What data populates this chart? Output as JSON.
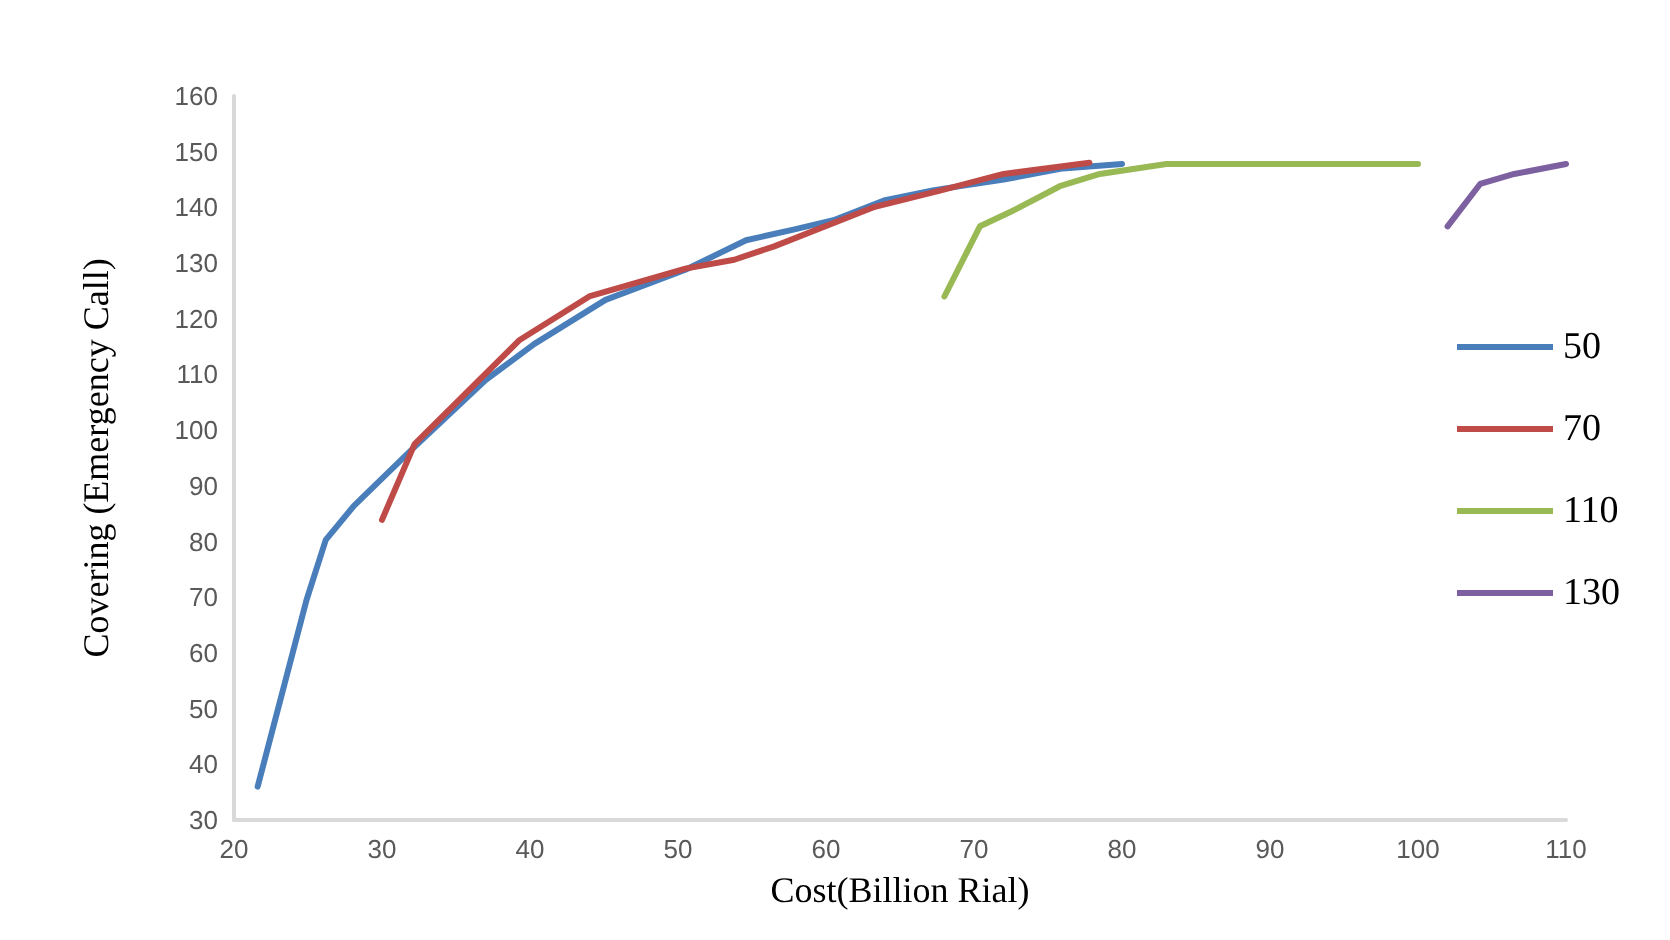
{
  "chart_data": {
    "type": "line",
    "xlabel": "Cost(Billion Rial)",
    "ylabel": "Covering (Emergency Call)",
    "xlim": [
      20,
      110
    ],
    "xticks": [
      20,
      30,
      40,
      50,
      60,
      70,
      80,
      90,
      100,
      110
    ],
    "ylim": [
      30,
      160
    ],
    "yticks": [
      30,
      40,
      50,
      60,
      70,
      80,
      90,
      100,
      110,
      120,
      130,
      140,
      150,
      160
    ],
    "grid": false,
    "legend": "right",
    "marker": "none",
    "line_style": "solid",
    "series": [
      {
        "name": "50",
        "color": "#4a7ebb",
        "x": [
          21.6,
          24.9,
          26.2,
          28.1,
          32.2,
          37,
          40.3,
          45.1,
          50.5,
          54.6,
          57.8,
          60.5,
          64,
          67.3,
          72,
          76,
          80
        ],
        "values": [
          36,
          69.5,
          80.3,
          86.4,
          97,
          109,
          115.5,
          123.4,
          128.8,
          134.1,
          136,
          137.7,
          141.3,
          143.1,
          145,
          147,
          147.8
        ]
      },
      {
        "name": "70",
        "color": "#be4b48",
        "x": [
          30,
          32.2,
          39.3,
          44,
          50.5,
          53.8,
          56.5,
          63.3,
          67.7,
          72,
          77.8
        ],
        "values": [
          83.9,
          97.5,
          116.2,
          124,
          129,
          130.6,
          133,
          140.1,
          143,
          146,
          148
        ]
      },
      {
        "name": "110",
        "color": "#98b954",
        "x": [
          68,
          70.4,
          72.7,
          75.8,
          78.5,
          83,
          84,
          100
        ],
        "values": [
          124,
          136.6,
          139.5,
          143.8,
          146,
          147.8,
          147.8,
          147.8
        ]
      },
      {
        "name": "130",
        "color": "#7d60a0",
        "x": [
          102,
          104.2,
          106.5,
          110
        ],
        "values": [
          136.6,
          144.2,
          146,
          147.8
        ]
      }
    ]
  }
}
